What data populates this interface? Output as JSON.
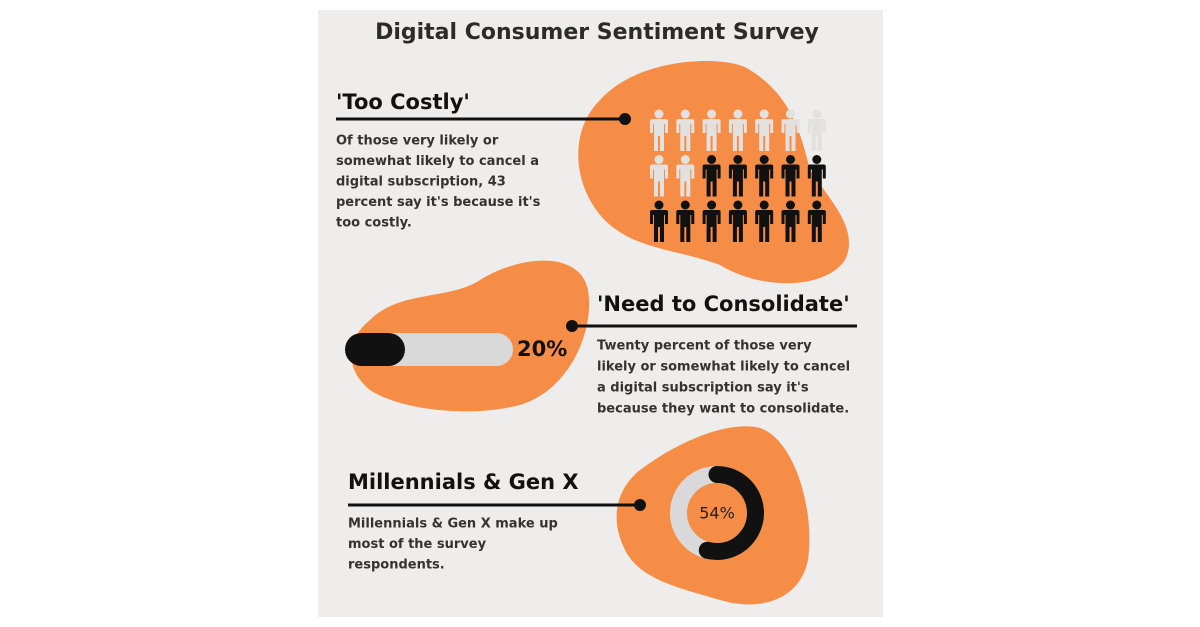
{
  "title": "Digital Consumer Sentiment Survey",
  "sections": [
    {
      "heading": "'Too Costly'",
      "body": [
        "Of those very likely or",
        "somewhat likely to cancel a",
        "digital subscription, 43",
        "percent say it's because it's",
        "too costly."
      ],
      "icons": {
        "total": 21,
        "highlighted": 9
      }
    },
    {
      "heading": "'Need to Consolidate'",
      "body": [
        "Twenty percent of those very",
        "likely or somewhat likely to cancel",
        "a digital subscription say it's",
        "because they want to consolidate."
      ],
      "progress": {
        "value": 20,
        "label": "20%"
      }
    },
    {
      "heading": "Millennials & Gen X",
      "body": [
        "Millennials & Gen X make up",
        "most of the survey",
        "respondents."
      ],
      "donut": {
        "value": 54,
        "label": "54%"
      }
    }
  ]
}
